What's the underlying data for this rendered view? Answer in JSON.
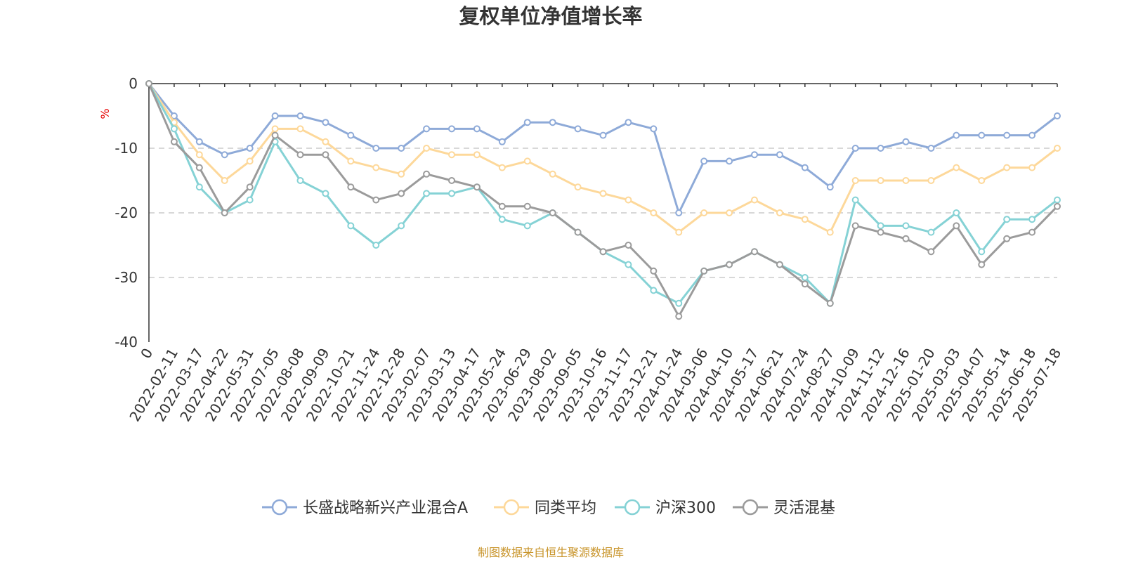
{
  "chart_data": {
    "type": "line",
    "title": "复权单位净值增长率",
    "ylabel": "%",
    "ylim": [
      -40,
      0
    ],
    "yticks": [
      0,
      -10,
      -20,
      -30,
      -40
    ],
    "grid": true,
    "legend_position": "bottom",
    "x_ticks": [
      "0",
      "2022-02-11",
      "2022-03-17",
      "2022-04-22",
      "2022-05-31",
      "2022-07-05",
      "2022-08-08",
      "2022-09-09",
      "2022-10-21",
      "2022-11-24",
      "2022-12-28",
      "2023-02-07",
      "2023-03-13",
      "2023-04-17",
      "2023-05-24",
      "2023-06-29",
      "2023-08-02",
      "2023-09-05",
      "2023-10-16",
      "2023-11-17",
      "2023-12-21",
      "2024-01-24",
      "2024-03-06",
      "2024-04-10",
      "2024-05-17",
      "2024-06-21",
      "2024-07-24",
      "2024-08-27",
      "2024-10-09",
      "2024-11-12",
      "2024-12-16",
      "2025-01-20",
      "2025-03-03",
      "2025-04-07",
      "2025-05-14",
      "2025-06-18",
      "2025-07-18"
    ],
    "series": [
      {
        "name": "长盛战略新兴产业混合A",
        "color": "#8eaad8",
        "values": [
          0,
          -5,
          -9,
          -11,
          -10,
          -5,
          -5,
          -6,
          -8,
          -10,
          -10,
          -7,
          -7,
          -7,
          -9,
          -6,
          -6,
          -7,
          -8,
          -6,
          -7,
          -20,
          -12,
          -12,
          -11,
          -11,
          -13,
          -16,
          -10,
          -10,
          -9,
          -10,
          -8,
          -8,
          -8,
          -8,
          -5
        ]
      },
      {
        "name": "同类平均",
        "color": "#fdd89a",
        "values": [
          0,
          -6,
          -11,
          -15,
          -12,
          -7,
          -7,
          -9,
          -12,
          -13,
          -14,
          -10,
          -11,
          -11,
          -13,
          -12,
          -14,
          -16,
          -17,
          -18,
          -20,
          -23,
          -20,
          -20,
          -18,
          -20,
          -21,
          -23,
          -15,
          -15,
          -15,
          -15,
          -13,
          -15,
          -13,
          -13,
          -10
        ]
      },
      {
        "name": "沪深300",
        "color": "#85d2d5",
        "values": [
          0,
          -7,
          -16,
          -20,
          -18,
          -9,
          -15,
          -17,
          -22,
          -25,
          -22,
          -17,
          -17,
          -16,
          -21,
          -22,
          -20,
          -23,
          -26,
          -28,
          -32,
          -34,
          -29,
          -28,
          -26,
          -28,
          -30,
          -34,
          -18,
          -22,
          -22,
          -23,
          -20,
          -26,
          -21,
          -21,
          -18
        ]
      },
      {
        "name": "灵活混基",
        "color": "#9b9b9b",
        "values": [
          0,
          -9,
          -13,
          -20,
          -16,
          -8,
          -11,
          -11,
          -16,
          -18,
          -17,
          -14,
          -15,
          -16,
          -19,
          -19,
          -20,
          -23,
          -26,
          -25,
          -29,
          -36,
          -29,
          -28,
          -26,
          -28,
          -31,
          -34,
          -22,
          -23,
          -24,
          -26,
          -22,
          -28,
          -24,
          -23,
          -19
        ]
      }
    ]
  },
  "footer": {
    "source": "制图数据来自恒生聚源数据库"
  }
}
